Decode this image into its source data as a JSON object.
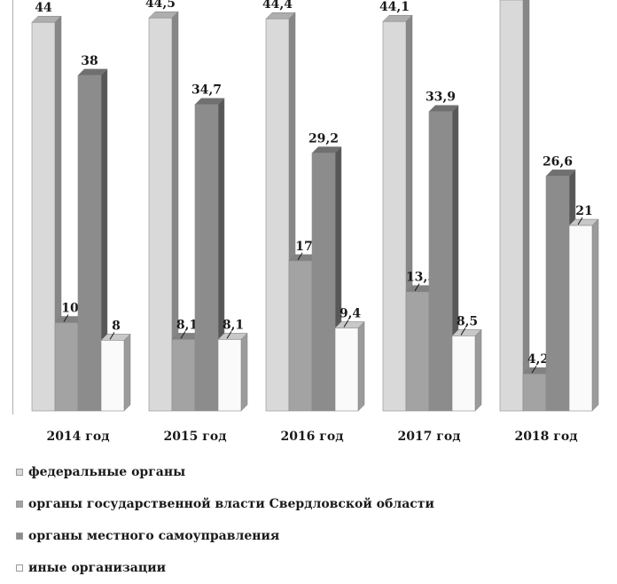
{
  "chart_data": {
    "type": "bar",
    "categories": [
      "2014 год",
      "2015 год",
      "2016 год",
      "2017 год",
      "2018 год"
    ],
    "series": [
      {
        "name": "федеральные органы",
        "values": [
          44,
          44.5,
          44.4,
          44.1,
          49.2
        ],
        "labels": [
          "44",
          "44,5",
          "44,4",
          "44,1",
          ""
        ],
        "color": "#d9d9d9"
      },
      {
        "name": "органы государственной власти Свердловской области",
        "values": [
          10,
          8.1,
          17,
          13.5,
          4.2
        ],
        "labels": [
          "10",
          "8,1",
          "17",
          "13,5",
          "4,2"
        ],
        "color": "#a3a3a3"
      },
      {
        "name": "органы местного самоуправления",
        "values": [
          38,
          34.7,
          29.2,
          33.9,
          26.6
        ],
        "labels": [
          "38",
          "34,7",
          "29,2",
          "33,9",
          "26,6"
        ],
        "color": "#8c8c8c"
      },
      {
        "name": "иные организации",
        "values": [
          8,
          8.1,
          9.4,
          8.5,
          21
        ],
        "labels": [
          "8",
          "8,1",
          "9,4",
          "8,5",
          "21"
        ],
        "color": "#fafafa"
      }
    ],
    "ylim": [
      0,
      50
    ],
    "grid": false,
    "legend_position": "bottom-left",
    "title": "",
    "xlabel": "",
    "ylabel": ""
  }
}
